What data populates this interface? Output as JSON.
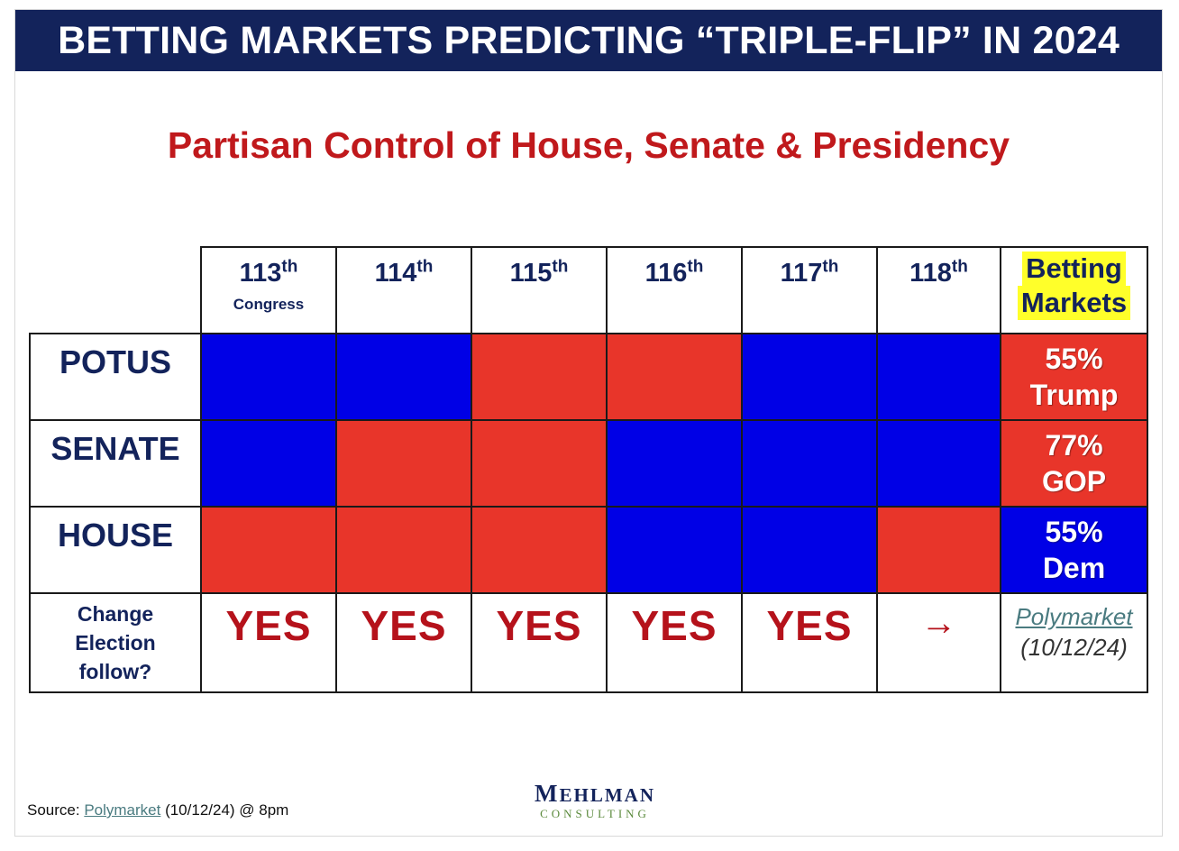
{
  "header": {
    "title": "BETTING MARKETS PREDICTING “TRIPLE-FLIP” IN 2024",
    "subtitle": "Partisan Control of House, Senate & Presidency"
  },
  "table": {
    "columns": [
      {
        "num": "113",
        "suffix": "th",
        "sub": "Congress"
      },
      {
        "num": "114",
        "suffix": "th"
      },
      {
        "num": "115",
        "suffix": "th"
      },
      {
        "num": "116",
        "suffix": "th"
      },
      {
        "num": "117",
        "suffix": "th"
      },
      {
        "num": "118",
        "suffix": "th"
      }
    ],
    "betting_header": [
      "Betting",
      "Markets"
    ],
    "rows": [
      {
        "label": "POTUS",
        "cells": [
          "blue",
          "blue",
          "red",
          "red",
          "blue",
          "blue"
        ],
        "market": {
          "pct": "55%",
          "who": "Trump",
          "color": "red"
        }
      },
      {
        "label": "SENATE",
        "cells": [
          "blue",
          "red",
          "red",
          "blue",
          "blue",
          "blue"
        ],
        "market": {
          "pct": "77%",
          "who": "GOP",
          "color": "red"
        }
      },
      {
        "label": "HOUSE",
        "cells": [
          "red",
          "red",
          "red",
          "blue",
          "blue",
          "red"
        ],
        "market": {
          "pct": "55%",
          "who": "Dem",
          "color": "blue"
        }
      }
    ],
    "change_label": [
      "Change",
      "Election",
      "follow?"
    ],
    "change_values": [
      "YES",
      "YES",
      "YES",
      "YES",
      "YES",
      "→"
    ],
    "market_source": {
      "name": "Polymarket",
      "date": "(10/12/24)"
    }
  },
  "colors": {
    "blue": "#0000e6",
    "red": "#e8352a",
    "navy": "#13235b",
    "dark_red": "#b5121b",
    "highlight": "#ffff2a"
  },
  "footer": {
    "source_prefix": "Source: ",
    "source_link": "Polymarket",
    "source_suffix": " (10/12/24) @ 8pm",
    "logo_line1_big": "M",
    "logo_line1_rest": "EHLMAN",
    "logo_line2": "CONSULTING"
  }
}
